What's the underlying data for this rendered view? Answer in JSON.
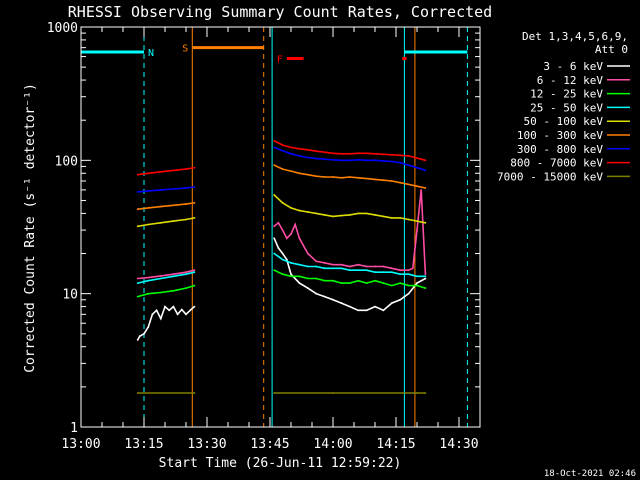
{
  "chart_data": {
    "type": "line",
    "title": "RHESSI Observing Summary Count Rates, Corrected",
    "xlabel": "Start Time (26-Jun-11 12:59:22)",
    "ylabel": "Corrected Count Rate (s⁻¹ detector⁻¹)",
    "y_scale": "log",
    "ylim": [
      1,
      1000
    ],
    "xlim_minutes_after_1300": [
      0,
      95
    ],
    "x_ticks": [
      "13:00",
      "13:15",
      "13:30",
      "13:45",
      "14:00",
      "14:15",
      "14:30"
    ],
    "y_ticks": [
      "1",
      "10",
      "100",
      "1000"
    ],
    "legend_header": [
      "Det 1,3,4,5,6,9,",
      "Att 0"
    ],
    "legend_position": "right",
    "footer": "18-Oct-2021 02:46",
    "series": [
      {
        "name": "3 - 6 keV",
        "color": "#ffffff",
        "segments": [
          {
            "x": [
              13.5,
              14,
              15,
              16,
              17,
              18,
              19,
              20,
              21,
              22,
              23,
              24,
              25,
              26,
              27
            ],
            "y": [
              4.5,
              4.8,
              5.0,
              5.6,
              7.0,
              7.5,
              6.5,
              8.0,
              7.5,
              8.0,
              7.0,
              7.6,
              7.0,
              7.5,
              8.0
            ]
          },
          {
            "x": [
              46,
              47,
              48,
              49,
              50,
              52,
              54,
              56,
              58,
              60,
              62,
              64,
              66,
              68,
              70,
              72,
              74,
              76,
              78,
              80,
              82
            ],
            "y": [
              26,
              22,
              20,
              18,
              14,
              12,
              11,
              10,
              9.5,
              9.0,
              8.5,
              8.0,
              7.5,
              7.5,
              8.0,
              7.5,
              8.5,
              9.0,
              10,
              12,
              13
            ]
          }
        ]
      },
      {
        "name": "6 - 12 keV",
        "color": "#ff4da6",
        "segments": [
          {
            "x": [
              13.5,
              16,
              19,
              22,
              25,
              27
            ],
            "y": [
              13,
              13.2,
              13.6,
              14,
              14.5,
              15
            ]
          },
          {
            "x": [
              46,
              47,
              48,
              49,
              50,
              51,
              52,
              54,
              56,
              58,
              60,
              62,
              64,
              66,
              68,
              70,
              72,
              74,
              76,
              78,
              79,
              80,
              81,
              82
            ],
            "y": [
              32,
              34,
              30,
              26,
              28,
              33,
              26,
              20,
              17.5,
              17,
              16.5,
              16.5,
              16,
              16.5,
              16,
              16,
              16,
              15.5,
              15,
              15,
              15.5,
              30,
              60,
              14
            ]
          }
        ]
      },
      {
        "name": "12 - 25 keV",
        "color": "#00ff00",
        "segments": [
          {
            "x": [
              13.5,
              16,
              19,
              22,
              25,
              27
            ],
            "y": [
              9.5,
              10,
              10.2,
              10.5,
              11,
              11.5
            ]
          },
          {
            "x": [
              46,
              48,
              50,
              52,
              54,
              56,
              58,
              60,
              62,
              64,
              66,
              68,
              70,
              72,
              74,
              76,
              78,
              80,
              82
            ],
            "y": [
              15,
              14,
              13.5,
              13.5,
              13,
              13,
              12.5,
              12.5,
              12,
              12,
              12.5,
              12,
              12.5,
              12,
              11.5,
              12,
              11.5,
              11.5,
              11
            ]
          }
        ]
      },
      {
        "name": "25 - 50 keV",
        "color": "#00ffff",
        "segments": [
          {
            "x": [
              13.5,
              16,
              19,
              22,
              25,
              27
            ],
            "y": [
              12,
              12.5,
              13,
              13.5,
              14,
              14.5
            ]
          },
          {
            "x": [
              46,
              47,
              48,
              50,
              52,
              54,
              56,
              58,
              60,
              62,
              64,
              66,
              68,
              70,
              72,
              74,
              76,
              78,
              80,
              82
            ],
            "y": [
              20,
              19,
              18,
              17,
              16.5,
              16,
              16,
              15.5,
              15.5,
              15.5,
              15,
              15,
              15,
              14.5,
              14.5,
              14.5,
              14,
              14,
              13.5,
              13.5
            ]
          }
        ]
      },
      {
        "name": "50 - 100 keV",
        "color": "#dddd00",
        "segments": [
          {
            "x": [
              13.5,
              16,
              19,
              22,
              25,
              27
            ],
            "y": [
              32,
              33,
              34,
              35,
              36,
              37
            ]
          },
          {
            "x": [
              46,
              48,
              50,
              52,
              54,
              56,
              58,
              60,
              62,
              64,
              66,
              68,
              70,
              72,
              74,
              76,
              78,
              80,
              82
            ],
            "y": [
              55,
              48,
              44,
              42,
              41,
              40,
              39,
              38,
              38.5,
              39,
              40,
              40,
              39,
              38,
              37,
              37,
              36,
              35,
              34
            ]
          }
        ]
      },
      {
        "name": "100 - 300 keV",
        "color": "#ff8000",
        "segments": [
          {
            "x": [
              13.5,
              16,
              19,
              22,
              25,
              27
            ],
            "y": [
              43,
              44,
              45,
              46,
              47,
              48
            ]
          },
          {
            "x": [
              46,
              48,
              50,
              52,
              54,
              56,
              58,
              60,
              62,
              64,
              66,
              68,
              70,
              72,
              74,
              76,
              78,
              80,
              82
            ],
            "y": [
              92,
              86,
              83,
              80,
              78,
              76,
              75,
              75,
              74,
              75,
              74,
              73,
              72,
              71,
              70,
              68,
              66,
              64,
              62
            ]
          }
        ]
      },
      {
        "name": "300 - 800 keV",
        "color": "#0000ff",
        "segments": [
          {
            "x": [
              13.5,
              16,
              19,
              22,
              25,
              27
            ],
            "y": [
              58,
              59,
              60,
              61,
              62,
              63
            ]
          },
          {
            "x": [
              46,
              48,
              50,
              52,
              54,
              56,
              58,
              60,
              62,
              64,
              66,
              68,
              70,
              72,
              74,
              76,
              78,
              80,
              82
            ],
            "y": [
              125,
              118,
              112,
              108,
              105,
              103,
              102,
              101,
              100,
              100,
              101,
              100,
              100,
              99,
              98,
              96,
              92,
              88,
              84
            ]
          }
        ]
      },
      {
        "name": "800 - 7000 keV",
        "color": "#ff0000",
        "segments": [
          {
            "x": [
              13.5,
              16,
              19,
              22,
              25,
              27
            ],
            "y": [
              78,
              80,
              82,
              84,
              86,
              88
            ]
          },
          {
            "x": [
              46,
              48,
              50,
              52,
              54,
              56,
              58,
              60,
              62,
              64,
              66,
              68,
              70,
              72,
              74,
              76,
              78,
              80,
              82
            ],
            "y": [
              140,
              130,
              125,
              122,
              120,
              117,
              115,
              113,
              112,
              112,
              113,
              113,
              112,
              111,
              110,
              109,
              108,
              104,
              100
            ]
          }
        ]
      },
      {
        "name": "7000 - 15000 keV",
        "color": "#808000",
        "segments": [
          {
            "x": [
              13.5,
              27
            ],
            "y": [
              1.8,
              1.8
            ]
          },
          {
            "x": [
              46,
              60,
              80,
              82
            ],
            "y": [
              1.8,
              1.8,
              1.8,
              1.8
            ]
          }
        ]
      }
    ],
    "flags": {
      "night": {
        "label": "N",
        "color": "#00ffff",
        "y": 650,
        "intervals": [
          [
            0,
            15
          ],
          [
            77,
            92
          ]
        ]
      },
      "saa": {
        "label": "S",
        "color": "#ff8000",
        "y": 700,
        "intervals": [
          [
            26.5,
            43.5
          ]
        ]
      },
      "flare": {
        "label": "F",
        "color": "#ff0000",
        "y": 580,
        "intervals": [
          [
            49,
            53
          ],
          [
            76.5,
            77.5
          ]
        ]
      }
    },
    "vlines": [
      {
        "x": 0,
        "color": "#00ffff",
        "style": "solid"
      },
      {
        "x": 15,
        "color": "#00ffff",
        "style": "dashed"
      },
      {
        "x": 26.5,
        "color": "#ff8000",
        "style": "solid"
      },
      {
        "x": 43.5,
        "color": "#ff8000",
        "style": "dashed"
      },
      {
        "x": 45.5,
        "color": "#00ffff",
        "style": "solid"
      },
      {
        "x": 77,
        "color": "#00ffff",
        "style": "solid"
      },
      {
        "x": 79.5,
        "color": "#ff8000",
        "style": "solid"
      },
      {
        "x": 92,
        "color": "#00ffff",
        "style": "dashed"
      }
    ]
  }
}
